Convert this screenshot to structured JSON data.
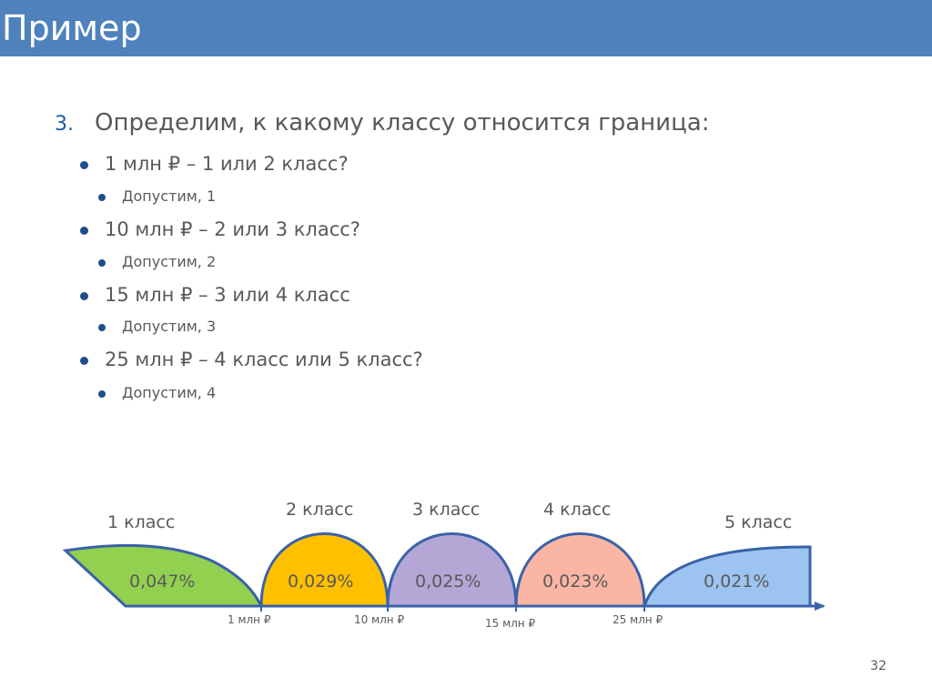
{
  "slide": {
    "title": "Пример",
    "page_number": "32",
    "title_bar_color": "#4f81bd"
  },
  "content": {
    "heading_number": "3.",
    "heading": "Определим, к какому классу относится граница:",
    "items": [
      {
        "label": "1 млн ₽ – 1 или 2 класс?",
        "sub": "Допустим, 1"
      },
      {
        "label": "10 млн ₽ – 2 или 3 класс?",
        "sub": "Допустим, 2"
      },
      {
        "label": "15 млн ₽ – 3 или 4 класс",
        "sub": "Допустим, 3"
      },
      {
        "label": "25 млн ₽ – 4 класс или 5 класс?",
        "sub": "Допустим, 4"
      }
    ]
  },
  "diagram": {
    "classes": [
      {
        "label": "1 класс",
        "value": "0,047%",
        "color": "#92d050"
      },
      {
        "label": "2 класс",
        "value": "0,029%",
        "color": "#ffc000"
      },
      {
        "label": "3 класс",
        "value": "0,025%",
        "color": "#b4a7d6"
      },
      {
        "label": "4 класс",
        "value": "0,023%",
        "color": "#fbb5a5"
      },
      {
        "label": "5 класс",
        "value": "0,021%",
        "color": "#9dc3f0"
      }
    ],
    "boundaries": [
      "1 млн ₽",
      "10 млн ₽",
      "15 млн ₽",
      "25 млн ₽"
    ],
    "outline_color": "#3a62a8"
  }
}
